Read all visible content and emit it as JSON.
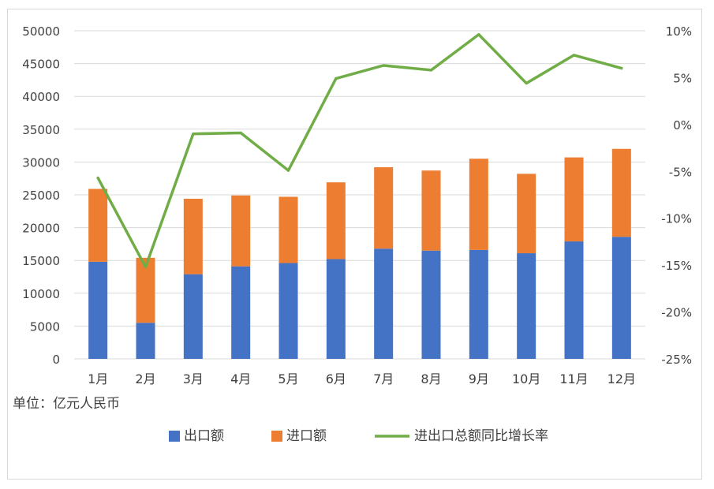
{
  "unit_note": "单位：亿元人民币",
  "chart_data": {
    "type": "bar",
    "stacked": true,
    "categories": [
      "1月",
      "2月",
      "3月",
      "4月",
      "5月",
      "6月",
      "7月",
      "8月",
      "9月",
      "10月",
      "11月",
      "12月"
    ],
    "series": [
      {
        "name": "出口额",
        "kind": "bar",
        "axis": "left",
        "color": "#4472c4",
        "values": [
          14800,
          5500,
          12900,
          14100,
          14600,
          15200,
          16800,
          16500,
          16600,
          16100,
          17900,
          18600
        ]
      },
      {
        "name": "进口额",
        "kind": "bar",
        "axis": "left",
        "color": "#ed7d31",
        "values": [
          11100,
          9900,
          11500,
          10800,
          10100,
          11700,
          12400,
          12200,
          13900,
          12100,
          12800,
          13400
        ]
      },
      {
        "name": "进出口总额同比增长率",
        "kind": "line",
        "axis": "right",
        "color": "#70ad47",
        "values": [
          -5.7,
          -15.2,
          -1.0,
          -0.9,
          -4.9,
          4.9,
          6.3,
          5.8,
          9.6,
          4.4,
          7.4,
          6.0
        ]
      }
    ],
    "y_left": {
      "min": 0,
      "max": 50000,
      "ticks": [
        "0",
        "5000",
        "10000",
        "15000",
        "20000",
        "25000",
        "30000",
        "35000",
        "40000",
        "45000",
        "50000"
      ]
    },
    "y_right": {
      "min": -25,
      "max": 10,
      "ticks": [
        "-25%",
        "-20%",
        "-15%",
        "-10%",
        "-5%",
        "0%",
        "5%",
        "10%"
      ]
    },
    "legend_position": "bottom",
    "grid": true
  }
}
